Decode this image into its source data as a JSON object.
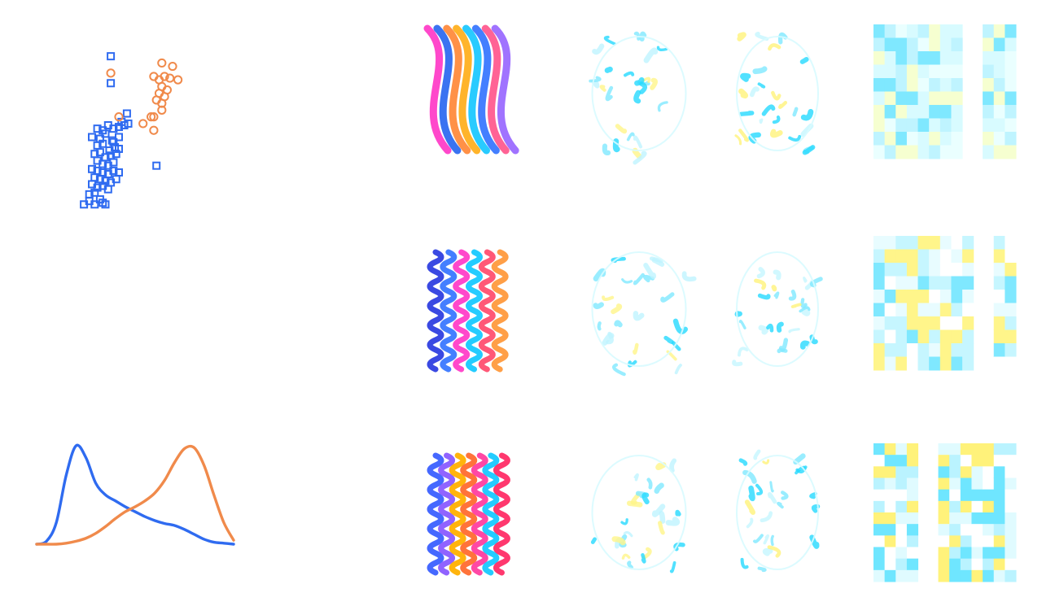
{
  "chart_data": [
    {
      "type": "scatter",
      "title": "",
      "xlabel": "",
      "ylabel": "",
      "xlim": [
        0,
        100
      ],
      "ylim": [
        0,
        100
      ],
      "grid": false,
      "series": [
        {
          "marker": "square",
          "color": "#2f6bf0",
          "points": [
            [
              34,
              98
            ],
            [
              34,
              82
            ],
            [
              46,
              64
            ],
            [
              42,
              59
            ],
            [
              40,
              56
            ],
            [
              47,
              58
            ],
            [
              28,
              54
            ],
            [
              32,
              57
            ],
            [
              36,
              55
            ],
            [
              44,
              57
            ],
            [
              26,
              49
            ],
            [
              30,
              52
            ],
            [
              36,
              47
            ],
            [
              40,
              50
            ],
            [
              24,
              45
            ],
            [
              28,
              46
            ],
            [
              33,
              42
            ],
            [
              37,
              44
            ],
            [
              40,
              43
            ],
            [
              22,
              40
            ],
            [
              26,
              41
            ],
            [
              30,
              38
            ],
            [
              34,
              39
            ],
            [
              38,
              40
            ],
            [
              24,
              36
            ],
            [
              28,
              34
            ],
            [
              32,
              33
            ],
            [
              36,
              35
            ],
            [
              20,
              31
            ],
            [
              24,
              30
            ],
            [
              28,
              29
            ],
            [
              32,
              28
            ],
            [
              36,
              30
            ],
            [
              40,
              29
            ],
            [
              22,
              26
            ],
            [
              26,
              25
            ],
            [
              30,
              24
            ],
            [
              34,
              23
            ],
            [
              38,
              25
            ],
            [
              20,
              22
            ],
            [
              24,
              20
            ],
            [
              28,
              21
            ],
            [
              32,
              19
            ],
            [
              18,
              16
            ],
            [
              22,
              17
            ],
            [
              26,
              13
            ],
            [
              28,
              11
            ],
            [
              14,
              10
            ],
            [
              18,
              12
            ],
            [
              22,
              10
            ],
            [
              30,
              10
            ],
            [
              68,
              33
            ],
            [
              24,
              55
            ],
            [
              20,
              50
            ],
            [
              35,
              48
            ]
          ]
        },
        {
          "marker": "circle",
          "color": "#f08a4b",
          "points": [
            [
              34,
              88
            ],
            [
              72,
              94
            ],
            [
              80,
              92
            ],
            [
              66,
              86
            ],
            [
              70,
              84
            ],
            [
              74,
              86
            ],
            [
              78,
              85
            ],
            [
              84,
              84
            ],
            [
              72,
              80
            ],
            [
              76,
              78
            ],
            [
              70,
              76
            ],
            [
              74,
              74
            ],
            [
              68,
              72
            ],
            [
              72,
              70
            ],
            [
              72,
              66
            ],
            [
              64,
              62
            ],
            [
              58,
              58
            ],
            [
              66,
              62
            ],
            [
              40,
              62
            ],
            [
              66,
              54
            ]
          ]
        }
      ]
    },
    {
      "type": "line",
      "title": "",
      "xlabel": "",
      "ylabel": "",
      "xlim": [
        0,
        100
      ],
      "ylim": [
        0,
        1
      ],
      "grid": false,
      "x": [
        0,
        5,
        10,
        15,
        20,
        25,
        30,
        35,
        40,
        45,
        50,
        55,
        60,
        65,
        70,
        75,
        80,
        85,
        90,
        95,
        100
      ],
      "series": [
        {
          "color": "#2f6bf0",
          "values": [
            0.0,
            0.03,
            0.22,
            0.7,
            1.0,
            0.88,
            0.62,
            0.5,
            0.44,
            0.38,
            0.33,
            0.28,
            0.24,
            0.21,
            0.19,
            0.15,
            0.1,
            0.05,
            0.02,
            0.01,
            0.0
          ]
        },
        {
          "color": "#f08a4b",
          "values": [
            0.0,
            0.0,
            0.0,
            0.01,
            0.03,
            0.06,
            0.11,
            0.18,
            0.26,
            0.33,
            0.38,
            0.44,
            0.52,
            0.65,
            0.83,
            0.97,
            0.98,
            0.8,
            0.5,
            0.22,
            0.04
          ]
        }
      ]
    }
  ],
  "panels": {
    "rows": [
      {
        "name": "row-1",
        "cartoon_palette": [
          "#ff3ec8",
          "#2f6bf0",
          "#ff8b3d",
          "#ffb020",
          "#1ec8ff",
          "#3a78ff",
          "#ff5b8f",
          "#9b6bff"
        ],
        "heatmap": {
          "cols": [
            8,
            3
          ],
          "rows": 10,
          "palette": [
            "#bff4ff",
            "#7fe8ff",
            "#d8fbff",
            "#eaffff",
            "#f6ffd0"
          ]
        }
      },
      {
        "name": "row-2",
        "cartoon_palette": [
          "#2f3fe0",
          "#3a78ff",
          "#ff3ec8",
          "#18c9ff",
          "#ff4f70",
          "#ff9a3d"
        ],
        "heatmap": {
          "cols": [
            9,
            2
          ],
          "rows": 10,
          "palette": [
            "#c6f6ff",
            "#7fe8ff",
            "#fff58a",
            "#e8fcff",
            "#ffffff"
          ]
        }
      },
      {
        "name": "row-3",
        "cartoon_palette": [
          "#3b60ff",
          "#8a5bff",
          "#ffb000",
          "#ff6b2f",
          "#ff3ea0",
          "#18c9ff",
          "#ff2d66"
        ],
        "heatmap": {
          "cols": [
            4,
            7
          ],
          "rows": 12,
          "palette": [
            "#baf3ff",
            "#6fe6ff",
            "#fff27a",
            "#e0fbff",
            "#ffffff"
          ]
        }
      }
    ]
  }
}
